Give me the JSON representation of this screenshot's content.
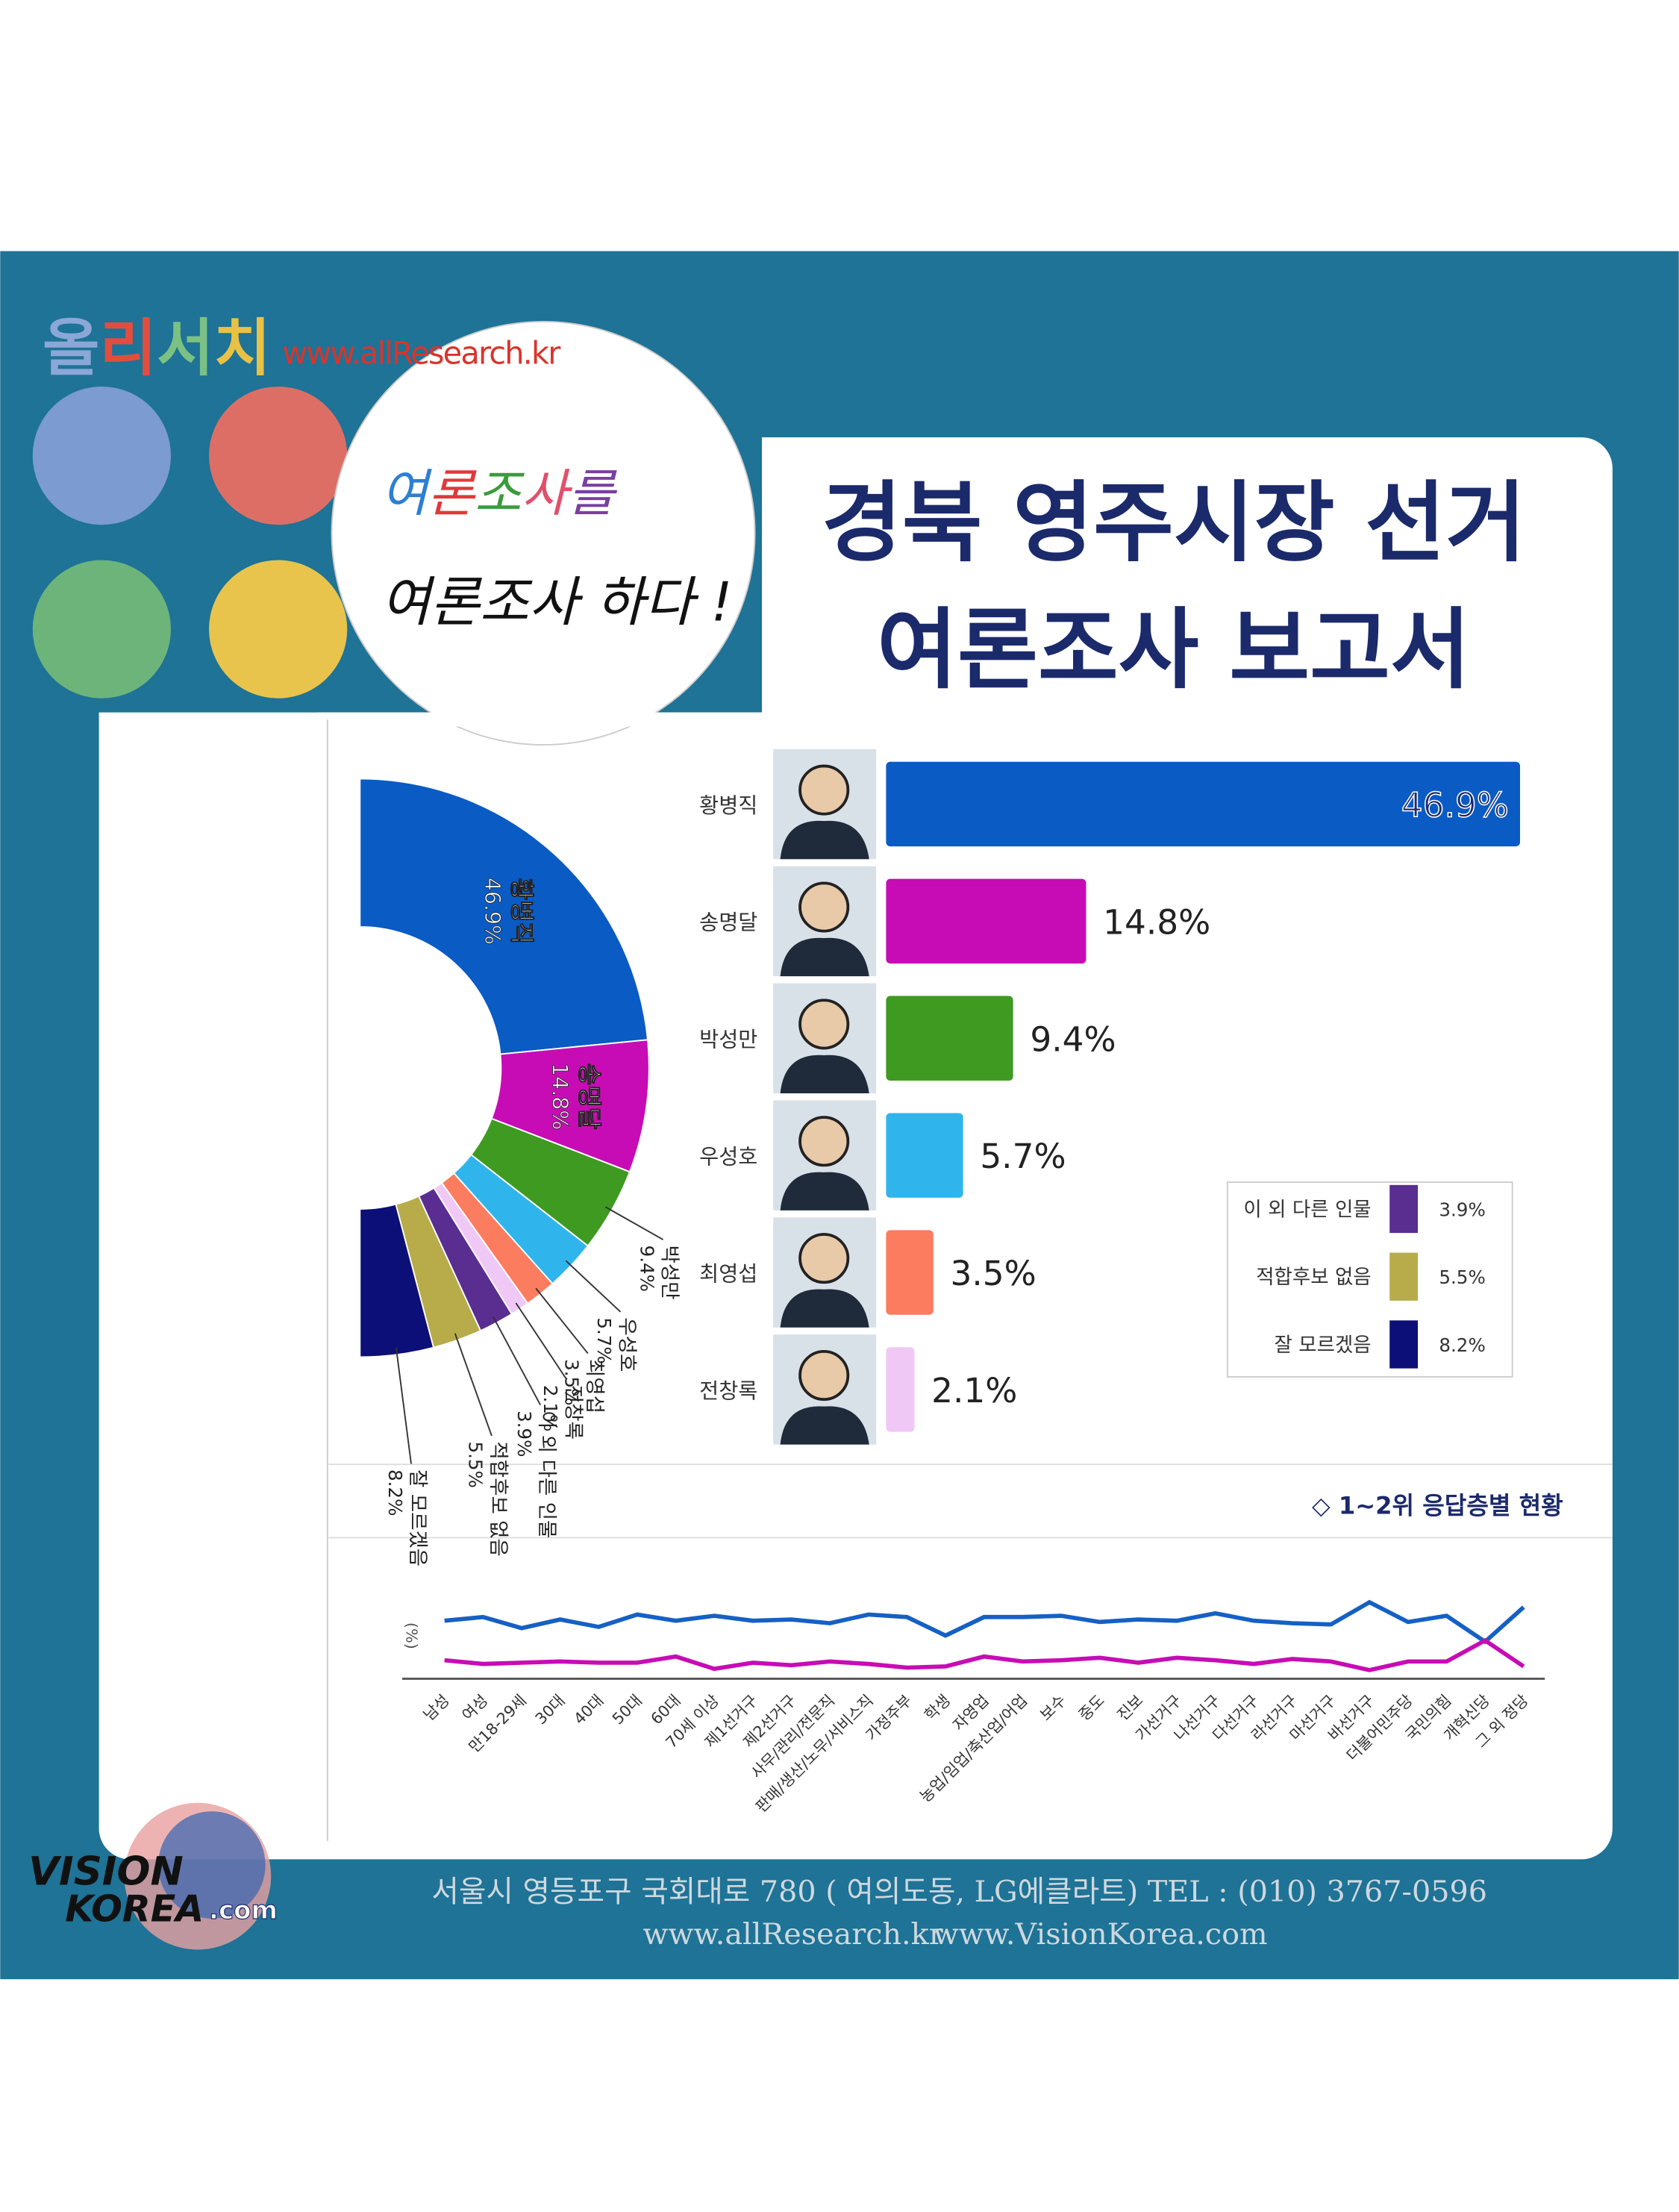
{
  "header": {
    "brand": "올리서치",
    "url": "www.allResearch.kr",
    "slogan": [
      "여론조사를",
      "여론조사 하다 !"
    ]
  },
  "title": [
    "경북 영주시장 선거",
    "여론조사 보고서"
  ],
  "chart_data": [
    {
      "type": "pie",
      "donut": true,
      "categories": [
        "황병직",
        "송명달",
        "박성만",
        "우성호",
        "최영섭",
        "전창록",
        "이 외 다른 인물",
        "적합후보 없음",
        "잘 모르겠음"
      ],
      "values": [
        46.9,
        14.8,
        9.4,
        5.7,
        3.5,
        2.1,
        3.9,
        5.5,
        8.2
      ],
      "value_labels": [
        "46.9%",
        "14.8%",
        "9.4%",
        "5.7%",
        "3.5%",
        "2.1%",
        "3.9%",
        "5.5%",
        "8.2%"
      ],
      "colors": [
        "#0a5bc4",
        "#c70cb5",
        "#3f9a22",
        "#2fb5ec",
        "#fb7c5e",
        "#f0c8f5",
        "#5a2d91",
        "#b8ab4a",
        "#0c0f78"
      ]
    },
    {
      "type": "bar",
      "orientation": "horizontal",
      "categories": [
        "황병직",
        "송명달",
        "박성만",
        "우성호",
        "최영섭",
        "전창록"
      ],
      "values": [
        46.9,
        14.8,
        9.4,
        5.7,
        3.5,
        2.1
      ],
      "value_labels": [
        "46.9%",
        "14.8%",
        "9.4%",
        "5.7%",
        "3.5%",
        "2.1%"
      ],
      "colors": [
        "#0a5bc4",
        "#c70cb5",
        "#3f9a22",
        "#2fb5ec",
        "#fb7c5e",
        "#f0c8f5"
      ],
      "xlim": [
        0,
        48
      ],
      "other_items": [
        {
          "name": "이 외 다른 인물",
          "value": 3.9,
          "value_label": "3.9%",
          "color": "#5a2d91"
        },
        {
          "name": "적합후보 없음",
          "value": 5.5,
          "value_label": "5.5%",
          "color": "#b8ab4a"
        },
        {
          "name": "잘 모르겠음",
          "value": 8.2,
          "value_label": "8.2%",
          "color": "#0c0f78"
        }
      ]
    },
    {
      "type": "line",
      "title": "◇ 1~2위 응답층별 현황",
      "y_label": "(%)",
      "categories": [
        "남성",
        "여성",
        "만18-29세",
        "30대",
        "40대",
        "50대",
        "60대",
        "70세 이상",
        "제1선거구",
        "제2선거구",
        "사무/관리/전문직",
        "판매/생산/노무/서비스직",
        "가정주부",
        "학생",
        "자영업",
        "농업/임업/축산업/어업",
        "보수",
        "중도",
        "진보",
        "가선거구",
        "나선거구",
        "다선거구",
        "라선거구",
        "마선거구",
        "바선거구",
        "더불어민주당",
        "국민의힘",
        "개혁신당",
        "그 외 정당"
      ],
      "ylim": [
        0,
        80
      ],
      "series": [
        {
          "color": "#1560c4",
          "values": [
            47,
            50,
            41,
            48,
            42,
            52,
            47,
            51,
            47,
            48,
            45,
            52,
            50,
            35,
            50,
            50,
            51,
            46,
            48,
            47,
            53,
            47,
            45,
            44,
            62,
            46,
            51,
            30,
            58
          ]
        },
        {
          "color": "#c70cb5",
          "values": [
            15,
            12,
            13,
            14,
            13,
            13,
            18,
            8,
            13,
            11,
            14,
            12,
            9,
            10,
            18,
            14,
            15,
            17,
            13,
            17,
            15,
            12,
            16,
            14,
            7,
            14,
            14,
            31,
            10
          ]
        }
      ]
    }
  ],
  "footer": {
    "logo": [
      "VISION",
      "KOREA",
      ".com"
    ],
    "address": "서울시 영등포구 국회대로 780 ( 여의도동, LG에클라트)  TEL : (010) 3767-0596",
    "urls": [
      "www.allResearch.kr",
      "www.VisionKorea.com"
    ]
  }
}
